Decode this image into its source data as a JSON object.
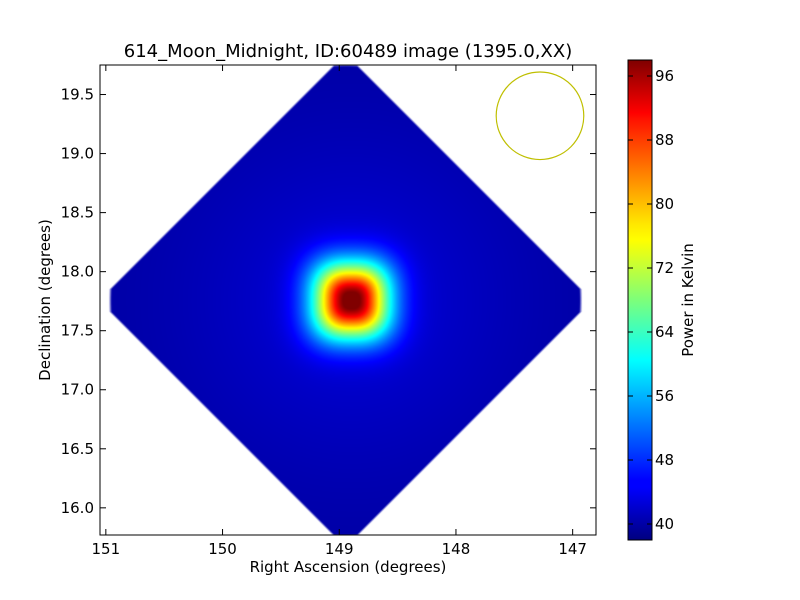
{
  "chart_data": {
    "type": "heatmap",
    "title": "614_Moon_Midnight, ID:60489 image (1395.0,XX)",
    "xlabel": "Right Ascension (degrees)",
    "ylabel": "Declination (degrees)",
    "colorbar_label": "Power in Kelvin",
    "xlim": [
      151.05,
      146.8
    ],
    "ylim": [
      15.77,
      19.75
    ],
    "x_ticks": [
      151,
      150,
      149,
      148,
      147
    ],
    "x_tick_labels": [
      "151",
      "150",
      "149",
      "148",
      "147"
    ],
    "y_ticks": [
      16.0,
      16.5,
      17.0,
      17.5,
      18.0,
      18.5,
      19.0,
      19.5
    ],
    "y_tick_labels": [
      "16.0",
      "16.5",
      "17.0",
      "17.5",
      "18.0",
      "18.5",
      "19.0",
      "19.5"
    ],
    "colorbar_range": [
      38,
      98
    ],
    "colorbar_ticks": [
      40,
      48,
      56,
      64,
      72,
      80,
      88,
      96
    ],
    "colorbar_tick_labels": [
      "40",
      "48",
      "56",
      "64",
      "72",
      "80",
      "88",
      "96"
    ],
    "colormap": "jet",
    "background_level": 40,
    "source": {
      "ra": 148.9,
      "dec": 17.76,
      "peak": 98
    },
    "footprint": {
      "center_ra": 148.95,
      "center_dec": 17.76,
      "half_width_deg": 2.1
    },
    "beam_circle": {
      "ra": 147.28,
      "dec": 19.32,
      "radius_deg": 0.36,
      "color": "#bfbf00"
    }
  }
}
